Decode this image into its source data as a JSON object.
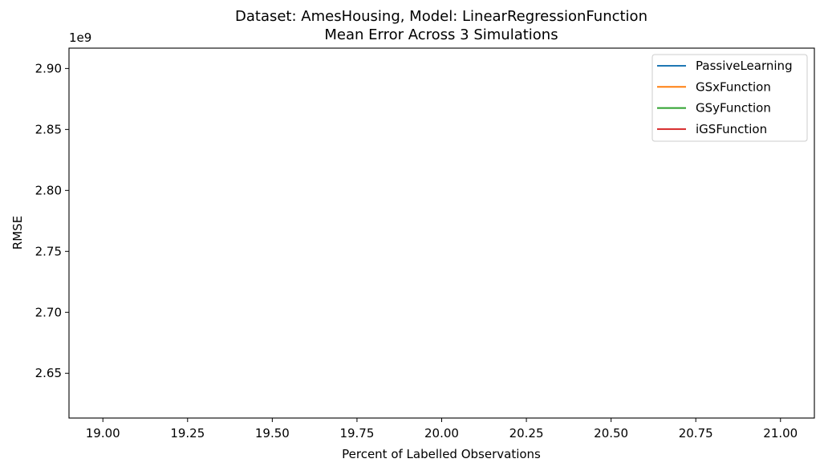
{
  "chart_data": {
    "type": "line",
    "title": "Dataset: AmesHousing, Model: LinearRegressionFunction",
    "subtitle": "Mean Error Across 3 Simulations",
    "xlabel": "Percent of Labelled Observations",
    "ylabel": "RMSE",
    "y_offset_label": "1e9",
    "xlim": [
      18.9,
      21.1
    ],
    "ylim": [
      2.6133,
      2.9167
    ],
    "x_ticks": [
      19.0,
      19.25,
      19.5,
      19.75,
      20.0,
      20.25,
      20.5,
      20.75,
      21.0
    ],
    "x_tick_labels": [
      "19.00",
      "19.25",
      "19.50",
      "19.75",
      "20.00",
      "20.25",
      "20.50",
      "20.75",
      "21.00"
    ],
    "y_ticks": [
      2.65,
      2.7,
      2.75,
      2.8,
      2.85,
      2.9
    ],
    "y_tick_labels": [
      "2.65",
      "2.70",
      "2.75",
      "2.80",
      "2.85",
      "2.90"
    ],
    "grid": false,
    "legend_position": "top-right",
    "series": [
      {
        "name": "PassiveLearning",
        "color": "#1f77b4",
        "x": [],
        "y": []
      },
      {
        "name": "GSxFunction",
        "color": "#ff7f0e",
        "x": [],
        "y": []
      },
      {
        "name": "GSyFunction",
        "color": "#2ca02c",
        "x": [],
        "y": []
      },
      {
        "name": "iGSFunction",
        "color": "#d62728",
        "x": [],
        "y": []
      }
    ]
  }
}
